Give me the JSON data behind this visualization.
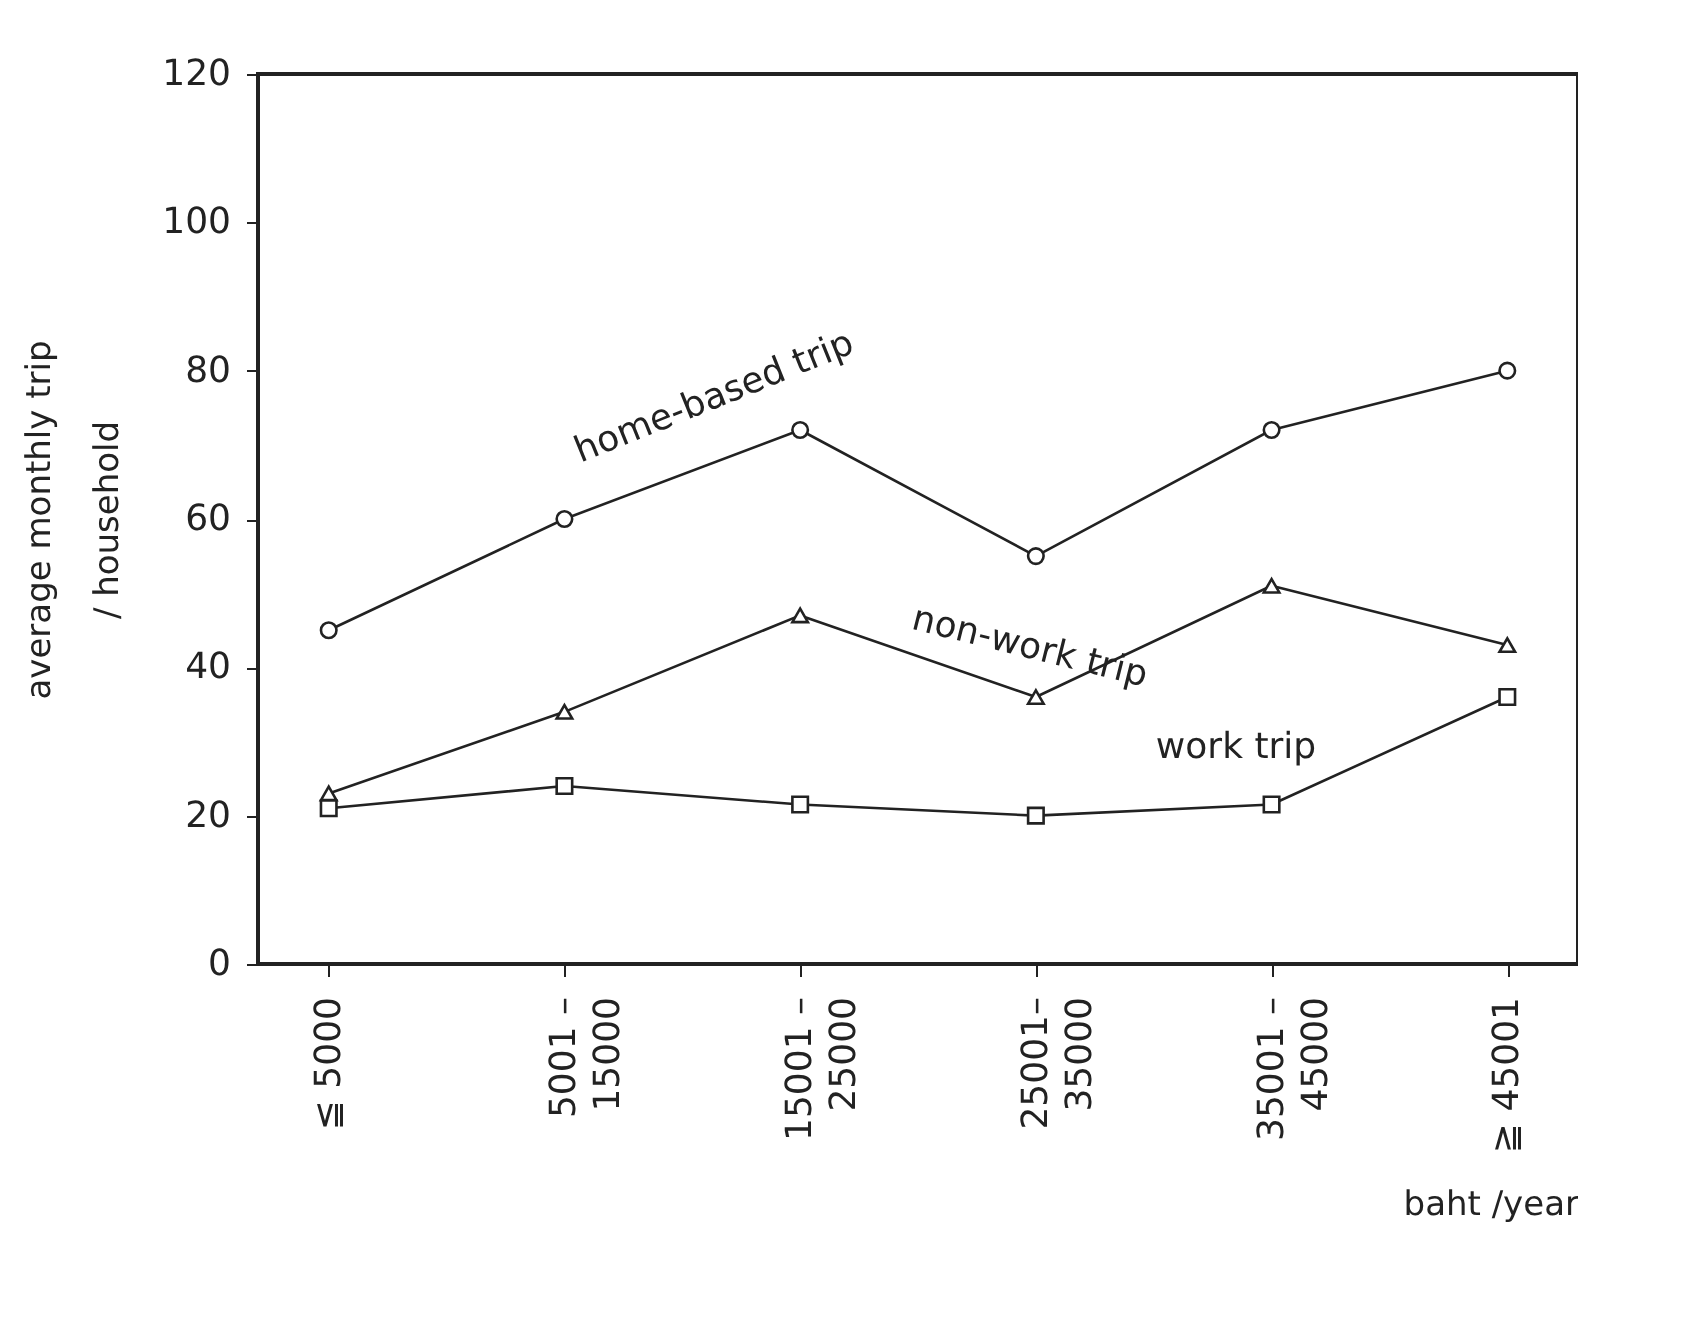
{
  "chart_data": {
    "type": "line",
    "xlabel": "baht /year",
    "ylabel": "average monthly trip\n/ household",
    "categories": [
      "≦ 5000",
      "5001 –\n15000",
      "15001 –\n25000",
      "25001–\n35000",
      "35001 –\n45000",
      "≧ 45001"
    ],
    "series": [
      {
        "name": "home-based  trip",
        "color": "#222222",
        "marker": "circle",
        "values": [
          45,
          60,
          72,
          55,
          72,
          80
        ]
      },
      {
        "name": "non-work trip",
        "color": "#222222",
        "marker": "triangle",
        "values": [
          23,
          34,
          47,
          36,
          51,
          43
        ]
      },
      {
        "name": "work trip",
        "color": "#222222",
        "marker": "square",
        "values": [
          21,
          24,
          21.5,
          20,
          21.5,
          36
        ]
      }
    ],
    "ylim": [
      0,
      120
    ],
    "yticks": [
      0,
      20,
      40,
      60,
      80,
      100,
      120
    ],
    "grid": false,
    "legend": false,
    "line_style": "solid"
  }
}
